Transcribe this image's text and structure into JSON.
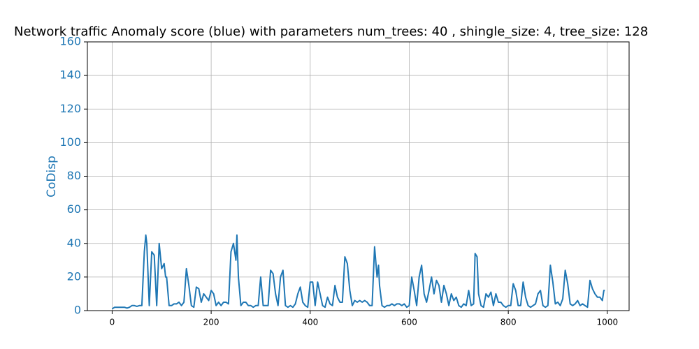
{
  "chart_data": {
    "type": "line",
    "title": "Network traffic Anomaly score (blue) with parameters num_trees: 40 , shingle_size: 4, tree_size: 128",
    "y_label": "CoDisp",
    "x": [
      0,
      5,
      10,
      15,
      20,
      25,
      30,
      35,
      40,
      45,
      50,
      55,
      60,
      65,
      68,
      70,
      75,
      80,
      85,
      90,
      95,
      100,
      105,
      108,
      110,
      115,
      120,
      125,
      130,
      135,
      140,
      145,
      150,
      155,
      160,
      165,
      170,
      175,
      180,
      185,
      190,
      195,
      200,
      205,
      210,
      215,
      220,
      225,
      230,
      235,
      240,
      245,
      250,
      252,
      255,
      260,
      265,
      270,
      275,
      280,
      285,
      290,
      295,
      300,
      305,
      310,
      315,
      320,
      325,
      330,
      335,
      340,
      345,
      350,
      355,
      360,
      365,
      370,
      375,
      380,
      385,
      390,
      395,
      400,
      405,
      410,
      415,
      420,
      425,
      430,
      435,
      440,
      445,
      450,
      455,
      460,
      465,
      470,
      475,
      480,
      485,
      490,
      495,
      500,
      505,
      510,
      515,
      520,
      525,
      530,
      535,
      538,
      540,
      545,
      550,
      555,
      560,
      565,
      570,
      575,
      580,
      585,
      590,
      595,
      600,
      605,
      610,
      615,
      620,
      625,
      630,
      635,
      640,
      645,
      650,
      655,
      660,
      665,
      670,
      675,
      680,
      685,
      690,
      695,
      700,
      705,
      710,
      715,
      720,
      725,
      730,
      733,
      737,
      740,
      745,
      750,
      755,
      760,
      765,
      770,
      775,
      780,
      785,
      790,
      795,
      800,
      805,
      810,
      815,
      820,
      825,
      830,
      835,
      840,
      845,
      850,
      855,
      860,
      865,
      870,
      875,
      880,
      885,
      890,
      895,
      900,
      905,
      910,
      915,
      920,
      925,
      930,
      935,
      940,
      945,
      950,
      955,
      960,
      965,
      970,
      975,
      980,
      985,
      990,
      993,
      995
    ],
    "series": [
      {
        "color": "#1f77b4",
        "values": [
          1,
          2,
          2,
          2,
          2,
          2,
          1.5,
          2,
          3,
          3,
          2.5,
          3,
          3,
          35,
          45,
          40,
          3,
          35,
          33,
          3,
          40,
          25,
          28,
          20,
          20,
          3,
          3,
          4,
          4,
          5,
          3,
          5,
          25,
          15,
          3,
          2,
          14,
          13,
          5,
          10,
          8,
          6,
          12,
          10,
          3,
          5,
          3,
          5,
          5,
          4,
          35,
          40,
          30,
          45,
          20,
          3,
          5,
          5,
          3,
          3,
          2,
          3,
          3,
          20,
          3,
          3,
          3,
          24,
          22,
          10,
          3,
          20,
          24,
          3,
          2,
          3,
          2,
          4,
          10,
          14,
          5,
          3,
          2,
          17,
          17,
          3,
          17,
          10,
          3,
          2,
          8,
          4,
          3,
          15,
          8,
          5,
          5,
          32,
          28,
          12,
          3,
          6,
          5,
          6,
          5,
          6,
          5,
          3,
          3,
          38,
          20,
          27,
          15,
          3,
          2,
          3,
          3,
          4,
          3,
          4,
          4,
          3,
          4,
          2,
          3,
          20,
          12,
          3,
          20,
          27,
          10,
          5,
          12,
          20,
          10,
          18,
          15,
          5,
          15,
          10,
          3,
          10,
          6,
          8,
          3,
          2,
          4,
          3,
          12,
          3,
          4,
          34,
          32,
          10,
          3,
          2,
          10,
          8,
          11,
          3,
          10,
          5,
          5,
          3,
          2,
          3,
          3,
          16,
          12,
          3,
          3,
          17,
          8,
          3,
          2,
          3,
          4,
          10,
          12,
          3,
          2,
          3,
          27,
          17,
          4,
          5,
          3,
          7,
          24,
          16,
          4,
          3,
          4,
          6,
          3,
          4,
          3,
          2,
          18,
          13,
          10,
          8,
          8,
          6,
          12,
          12
        ]
      }
    ],
    "xlim": [
      -50,
      1044
    ],
    "ylim": [
      0,
      160
    ],
    "xticks": [
      0,
      200,
      400,
      600,
      800,
      1000
    ],
    "yticks": [
      0,
      20,
      40,
      60,
      80,
      100,
      120,
      140,
      160
    ],
    "grid": true,
    "axis_color": "#1f77b4"
  }
}
